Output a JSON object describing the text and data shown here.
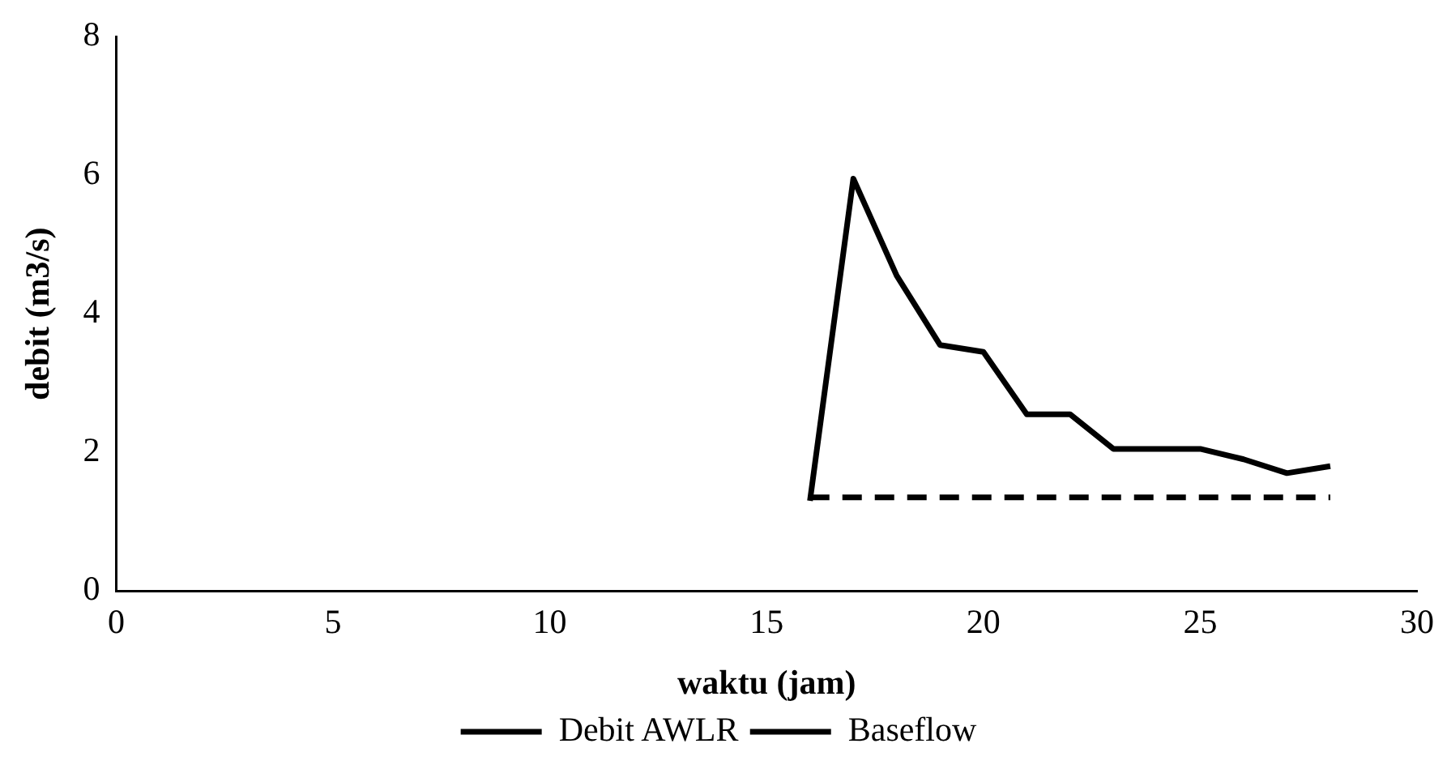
{
  "chart_data": {
    "type": "line",
    "xlabel": "waktu (jam)",
    "ylabel": "debit (m3/s)",
    "xlim": [
      0,
      30
    ],
    "xticks": [
      0,
      5,
      10,
      15,
      20,
      25,
      30
    ],
    "ylim": [
      0,
      8
    ],
    "yticks": [
      0,
      2,
      4,
      6,
      8
    ],
    "grid": false,
    "legend": "bottom",
    "marker": "none",
    "series": [
      {
        "name": "Debit AWLR",
        "color": "#000000",
        "line_style": "solid",
        "x": [
          16,
          17,
          18,
          19,
          20,
          21,
          22,
          23,
          24,
          25,
          26,
          27,
          28
        ],
        "values": [
          1.3,
          5.95,
          4.55,
          3.55,
          3.45,
          2.55,
          2.55,
          2.05,
          2.05,
          2.05,
          1.9,
          1.7,
          1.8
        ]
      },
      {
        "name": "Baseflow",
        "color": "#000000",
        "line_style": "dashed",
        "x": [
          16,
          28
        ],
        "values": [
          1.35,
          1.35
        ]
      }
    ]
  }
}
